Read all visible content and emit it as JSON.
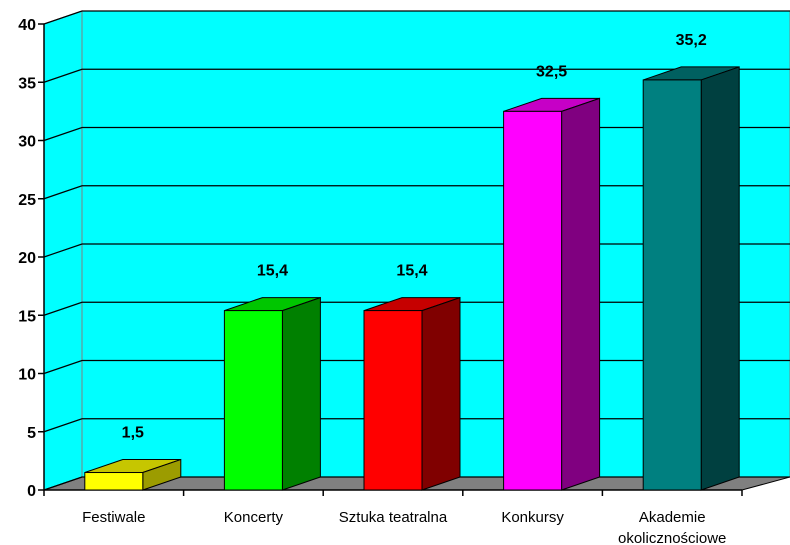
{
  "chart_data": {
    "type": "bar",
    "title": "",
    "xlabel": "",
    "ylabel": "",
    "ylim": [
      0,
      40
    ],
    "yticks": [
      0,
      5,
      10,
      15,
      20,
      25,
      30,
      35,
      40
    ],
    "grid": true,
    "three_d": true,
    "legend": "none",
    "background_color": "#00ffff",
    "floor_color": "#808080",
    "categories": [
      [
        "Festiwale"
      ],
      [
        "Koncerty"
      ],
      [
        "Sztuka teatralna"
      ],
      [
        "Konkursy"
      ],
      [
        "Akademie",
        "okolicznościowe"
      ]
    ],
    "values": [
      1.5,
      15.4,
      15.4,
      32.5,
      35.2
    ],
    "value_labels": [
      "1,5",
      "15,4",
      "15,4",
      "32,5",
      "35,2"
    ],
    "bar_colors": [
      {
        "front": "#ffff00",
        "side": "#9c9c00",
        "top": "#c6c600"
      },
      {
        "front": "#00ff00",
        "side": "#008000",
        "top": "#00c600"
      },
      {
        "front": "#ff0000",
        "side": "#800000",
        "top": "#c60000"
      },
      {
        "front": "#ff00ff",
        "side": "#800080",
        "top": "#c600c6"
      },
      {
        "front": "#008080",
        "side": "#004040",
        "top": "#006060"
      }
    ]
  }
}
